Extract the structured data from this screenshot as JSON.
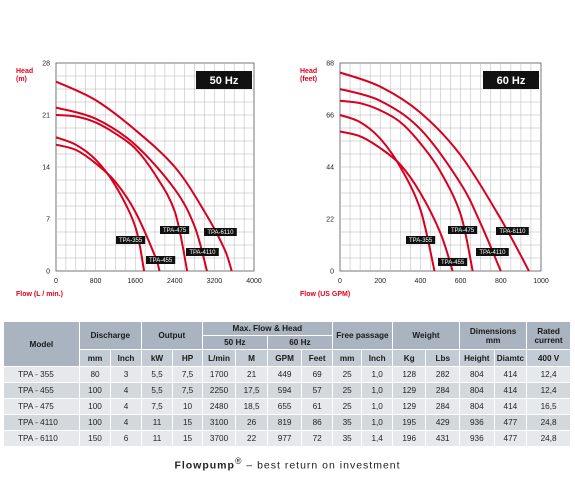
{
  "chart_data": [
    {
      "type": "line",
      "badge": "50 Hz",
      "ylabel": [
        "Head",
        "(m)"
      ],
      "xlabel": "Flow (L / min.)",
      "xlim": [
        0,
        4000
      ],
      "ylim": [
        0,
        28
      ],
      "x_ticks": [
        0,
        800,
        1600,
        2400,
        3200,
        4000
      ],
      "y_ticks": [
        0,
        7,
        14,
        21,
        28
      ],
      "grid": true,
      "series": [
        {
          "name": "TPA-355",
          "points": [
            [
              0,
              18
            ],
            [
              400,
              17
            ],
            [
              800,
              15
            ],
            [
              1200,
              11.5
            ],
            [
              1600,
              6
            ],
            [
              1780,
              0
            ]
          ]
        },
        {
          "name": "TPA-455",
          "points": [
            [
              0,
              17
            ],
            [
              400,
              16.3
            ],
            [
              800,
              14.5
            ],
            [
              1200,
              12
            ],
            [
              1600,
              8
            ],
            [
              2000,
              2
            ],
            [
              2090,
              0
            ]
          ]
        },
        {
          "name": "TPA-475",
          "points": [
            [
              0,
              21
            ],
            [
              400,
              20.8
            ],
            [
              800,
              20
            ],
            [
              1200,
              18.5
            ],
            [
              1600,
              16.5
            ],
            [
              2000,
              13
            ],
            [
              2400,
              8
            ],
            [
              2650,
              0
            ]
          ]
        },
        {
          "name": "TPA-4110",
          "points": [
            [
              0,
              22
            ],
            [
              800,
              20.5
            ],
            [
              1600,
              17
            ],
            [
              2400,
              11
            ],
            [
              2800,
              6
            ],
            [
              3050,
              0
            ]
          ]
        },
        {
          "name": "TPA-6110",
          "points": [
            [
              0,
              25.5
            ],
            [
              800,
              23
            ],
            [
              1600,
              19
            ],
            [
              2400,
              14
            ],
            [
              3000,
              8
            ],
            [
              3400,
              3
            ],
            [
              3550,
              0
            ]
          ]
        }
      ]
    },
    {
      "type": "line",
      "badge": "60 Hz",
      "ylabel": [
        "Head",
        "(feet)"
      ],
      "xlabel": "Flow (US GPM)",
      "xlim": [
        0,
        1000
      ],
      "ylim": [
        0,
        88
      ],
      "x_ticks": [
        0,
        200,
        400,
        600,
        800,
        1000
      ],
      "y_ticks": [
        0,
        22,
        44,
        66,
        88
      ],
      "grid": true,
      "series": [
        {
          "name": "TPA-355",
          "points": [
            [
              0,
              66
            ],
            [
              100,
              63
            ],
            [
              200,
              56
            ],
            [
              300,
              44
            ],
            [
              400,
              26
            ],
            [
              470,
              0
            ]
          ]
        },
        {
          "name": "TPA-455",
          "points": [
            [
              0,
              59
            ],
            [
              100,
              57
            ],
            [
              200,
              52
            ],
            [
              300,
              45
            ],
            [
              400,
              33
            ],
            [
              500,
              16
            ],
            [
              560,
              0
            ]
          ]
        },
        {
          "name": "TPA-475",
          "points": [
            [
              0,
              72
            ],
            [
              100,
              71
            ],
            [
              200,
              68
            ],
            [
              300,
              63
            ],
            [
              400,
              54
            ],
            [
              500,
              42
            ],
            [
              600,
              24
            ],
            [
              660,
              0
            ]
          ]
        },
        {
          "name": "TPA-4110",
          "points": [
            [
              0,
              77
            ],
            [
              200,
              72
            ],
            [
              400,
              60
            ],
            [
              600,
              37
            ],
            [
              700,
              20
            ],
            [
              800,
              0
            ]
          ]
        },
        {
          "name": "TPA-6110",
          "points": [
            [
              0,
              84
            ],
            [
              200,
              78
            ],
            [
              400,
              67
            ],
            [
              600,
              49
            ],
            [
              800,
              22
            ],
            [
              940,
              0
            ]
          ]
        }
      ]
    }
  ],
  "table": {
    "headers": {
      "model": "Model",
      "discharge": "Discharge",
      "output": "Output",
      "max_flow_head": "Max. Flow & Head",
      "hz50": "50 Hz",
      "hz60": "60 Hz",
      "free_passage": "Free passage",
      "weight": "Weight",
      "dimensions": [
        "Dimensions",
        "mm"
      ],
      "rated_current": [
        "Rated",
        "current"
      ]
    },
    "units": [
      "mm",
      "Inch",
      "kW",
      "HP",
      "L/min",
      "M",
      "GPM",
      "Feet",
      "mm",
      "Inch",
      "Kg",
      "Lbs",
      "Height",
      "Diamtc",
      "400 V"
    ],
    "rows": [
      [
        "TPA - 355",
        "80",
        "3",
        "5,5",
        "7,5",
        "1700",
        "21",
        "449",
        "69",
        "25",
        "1,0",
        "128",
        "282",
        "804",
        "414",
        "12,4"
      ],
      [
        "TPA - 455",
        "100",
        "4",
        "5,5",
        "7,5",
        "2250",
        "17,5",
        "594",
        "57",
        "25",
        "1,0",
        "129",
        "284",
        "804",
        "414",
        "12,4"
      ],
      [
        "TPA - 475",
        "100",
        "4",
        "7,5",
        "10",
        "2480",
        "18,5",
        "655",
        "61",
        "25",
        "1,0",
        "129",
        "284",
        "804",
        "414",
        "16,5"
      ],
      [
        "TPA - 4110",
        "100",
        "4",
        "11",
        "15",
        "3100",
        "26",
        "819",
        "86",
        "35",
        "1,0",
        "195",
        "429",
        "936",
        "477",
        "24,8"
      ],
      [
        "TPA - 6110",
        "150",
        "6",
        "11",
        "15",
        "3700",
        "22",
        "977",
        "72",
        "35",
        "1,4",
        "196",
        "431",
        "936",
        "477",
        "24,8"
      ]
    ]
  },
  "footer": {
    "brand": "Flowpump",
    "reg": "®",
    "tagline": " – best return on investment"
  },
  "colors": {
    "curve": "#d8001f",
    "grid": "#b5b5b5",
    "axis_title": "#e3001b",
    "header_bg": "#a9b4c0"
  }
}
